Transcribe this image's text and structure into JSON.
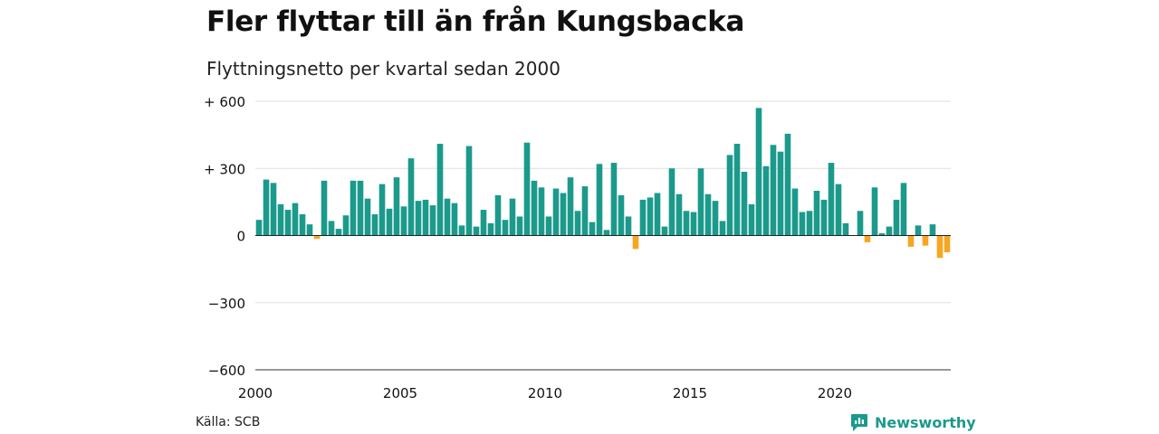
{
  "title": "Fler flyttar till än från Kungsbacka",
  "subtitle": "Flyttningsnetto per kvartal sedan 2000",
  "source": "Källa: SCB",
  "brand": {
    "name": "Newsworthy",
    "icon": "newsworthy-logo-icon"
  },
  "colors": {
    "positive": "#1b9a8c",
    "negative": "#f5a623",
    "grid": "#dddddd",
    "brand": "#1b9a8c"
  },
  "chart_data": {
    "type": "bar",
    "x_start": 2000,
    "periods_per_year": 4,
    "ylim": [
      -600,
      600
    ],
    "yticks": [
      -600,
      -300,
      0,
      300,
      600
    ],
    "ytick_labels": [
      "−600",
      "−300",
      "0",
      "+ 300",
      "+ 600"
    ],
    "xticks": [
      2000,
      2005,
      2010,
      2015,
      2020
    ],
    "xtick_labels": [
      "2000",
      "2005",
      "2010",
      "2015",
      "2020"
    ],
    "grid": true,
    "values": [
      70,
      250,
      235,
      140,
      115,
      145,
      95,
      50,
      -15,
      245,
      65,
      30,
      90,
      245,
      245,
      165,
      95,
      230,
      120,
      260,
      130,
      345,
      155,
      160,
      135,
      410,
      165,
      145,
      45,
      400,
      40,
      115,
      55,
      180,
      70,
      165,
      85,
      415,
      245,
      215,
      85,
      210,
      190,
      260,
      110,
      220,
      60,
      320,
      25,
      325,
      180,
      85,
      -60,
      160,
      170,
      190,
      40,
      300,
      185,
      110,
      105,
      300,
      185,
      155,
      65,
      360,
      410,
      285,
      140,
      570,
      310,
      405,
      375,
      455,
      210,
      105,
      110,
      200,
      160,
      325,
      230,
      55,
      0,
      110,
      -30,
      215,
      10,
      40,
      160,
      235,
      -50,
      45,
      -45,
      50,
      -100,
      -75
    ]
  }
}
